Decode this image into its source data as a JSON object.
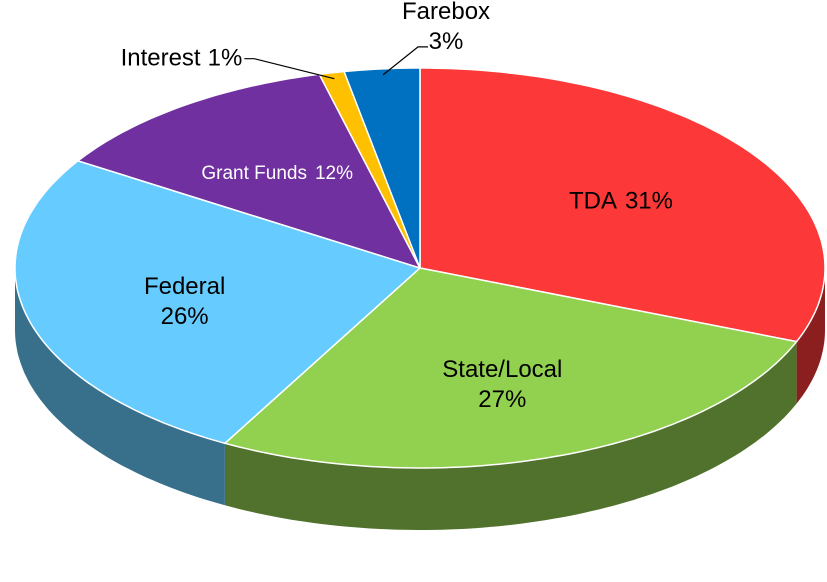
{
  "chart_data": {
    "type": "pie3d",
    "categories": [
      "TDA",
      "State/Local",
      "Federal",
      "Grant Funds",
      "Interest",
      "Farebox"
    ],
    "values": [
      31,
      27,
      26,
      12,
      1,
      3
    ],
    "value_labels": [
      "31%",
      "27%",
      "26%",
      "12%",
      "1%",
      "3%"
    ],
    "colors": [
      "#fc3838",
      "#92d050",
      "#66ccff",
      "#7030a0",
      "#ffc000",
      "#0070c0"
    ],
    "start_angle": 0,
    "direction": "clockwise"
  }
}
